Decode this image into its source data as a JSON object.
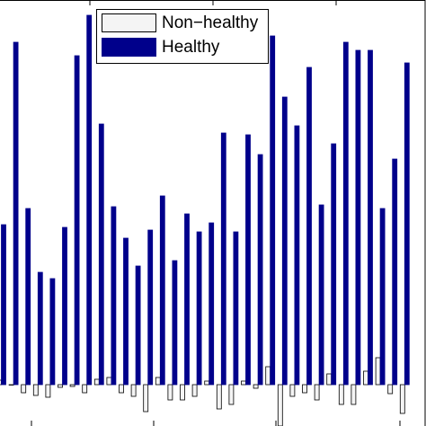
{
  "chart_data": {
    "type": "bar",
    "categories": [
      null,
      null,
      null,
      null,
      null,
      null,
      null,
      null,
      null,
      null,
      null,
      null,
      null,
      null,
      null,
      null,
      null,
      null,
      null,
      null,
      null,
      null,
      null,
      null,
      null,
      null,
      null,
      null,
      null,
      null,
      null,
      null,
      null,
      null
    ],
    "series": [
      {
        "name": "Non−healthy",
        "color": "#f4f4f4",
        "values": [
          0.5,
          0.0,
          -0.9,
          -1.2,
          -1.4,
          -0.3,
          -0.2,
          -0.9,
          0.6,
          0.8,
          -0.9,
          -1.3,
          -3.0,
          0.8,
          -1.7,
          -1.7,
          -1.3,
          0.4,
          -2.7,
          -2.2,
          0.4,
          -0.4,
          2.0,
          -4.6,
          -1.3,
          -0.9,
          -1.7,
          1.2,
          -2.2,
          -2.2,
          1.5,
          3.0,
          -1.0,
          -3.2
        ]
      },
      {
        "name": "Healthy",
        "color": "#00008b",
        "values": [
          17.8,
          38.1,
          19.6,
          12.5,
          11.8,
          17.5,
          36.6,
          41.1,
          29.0,
          19.8,
          16.3,
          13.2,
          17.2,
          21.0,
          13.8,
          19.0,
          17.0,
          18.0,
          28.0,
          17.0,
          27.8,
          25.6,
          38.8,
          32.0,
          28.8,
          35.3,
          20.0,
          26.8,
          38.1,
          37.2,
          37.2,
          19.6,
          25.1,
          35.8
        ]
      }
    ],
    "ylim": [
      -4.6,
      42.8
    ]
  }
}
